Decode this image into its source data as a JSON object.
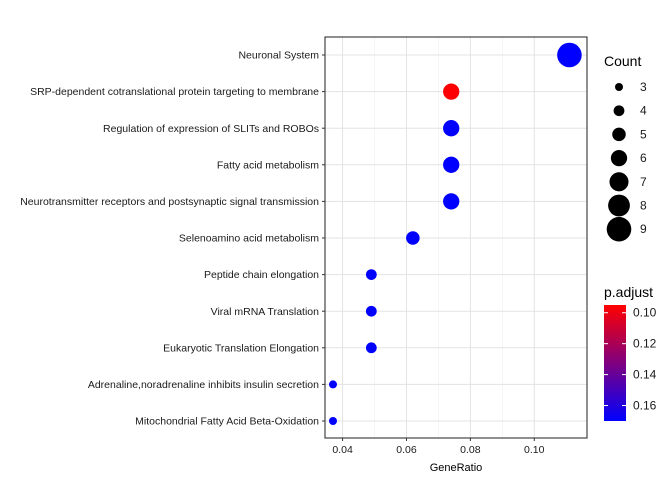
{
  "chart_data": {
    "type": "scatter",
    "xlabel": "GeneRatio",
    "ylabel": "",
    "xlim": [
      0.0345,
      0.1165
    ],
    "x_ticks": [
      0.04,
      0.06,
      0.08,
      0.1
    ],
    "x_tick_labels": [
      "0.04",
      "0.06",
      "0.08",
      "0.10"
    ],
    "grid": true,
    "categories": [
      "Neuronal System",
      "SRP-dependent cotranslational protein targeting to membrane",
      "Regulation of expression of SLITs and ROBOs",
      "Fatty acid metabolism",
      "Neurotransmitter receptors and postsynaptic signal transmission",
      "Selenoamino acid metabolism",
      "Peptide chain elongation",
      "Viral mRNA Translation",
      "Eukaryotic Translation Elongation",
      "Adrenaline,noradrenaline inhibits insulin secretion",
      "Mitochondrial Fatty Acid Beta-Oxidation"
    ],
    "points": [
      {
        "term": "Neuronal System",
        "gene_ratio": 0.111,
        "count": 9,
        "p_adjust": 0.17
      },
      {
        "term": "SRP-dependent cotranslational protein targeting to membrane",
        "gene_ratio": 0.074,
        "count": 6,
        "p_adjust": 0.096
      },
      {
        "term": "Regulation of expression of SLITs and ROBOs",
        "gene_ratio": 0.074,
        "count": 6,
        "p_adjust": 0.17
      },
      {
        "term": "Fatty acid metabolism",
        "gene_ratio": 0.074,
        "count": 6,
        "p_adjust": 0.17
      },
      {
        "term": "Neurotransmitter receptors and postsynaptic signal transmission",
        "gene_ratio": 0.074,
        "count": 6,
        "p_adjust": 0.17
      },
      {
        "term": "Selenoamino acid metabolism",
        "gene_ratio": 0.062,
        "count": 5,
        "p_adjust": 0.17
      },
      {
        "term": "Peptide chain elongation",
        "gene_ratio": 0.049,
        "count": 4,
        "p_adjust": 0.17
      },
      {
        "term": "Viral mRNA Translation",
        "gene_ratio": 0.049,
        "count": 4,
        "p_adjust": 0.17
      },
      {
        "term": "Eukaryotic Translation Elongation",
        "gene_ratio": 0.049,
        "count": 4,
        "p_adjust": 0.17
      },
      {
        "term": "Adrenaline,noradrenaline inhibits insulin secretion",
        "gene_ratio": 0.037,
        "count": 3,
        "p_adjust": 0.17
      },
      {
        "term": "Mitochondrial Fatty Acid Beta-Oxidation",
        "gene_ratio": 0.037,
        "count": 3,
        "p_adjust": 0.17
      }
    ],
    "size_legend": {
      "title": "Count",
      "values": [
        3,
        4,
        5,
        6,
        7,
        8,
        9
      ],
      "labels": [
        "3",
        "4",
        "5",
        "6",
        "7",
        "8",
        "9"
      ]
    },
    "color_legend": {
      "title": "p.adjust",
      "range": [
        0.095,
        0.17
      ],
      "ticks": [
        0.1,
        0.12,
        0.14,
        0.16
      ],
      "tick_labels": [
        "0.10",
        "0.12",
        "0.14",
        "0.16"
      ],
      "low_color": "#ff0000",
      "high_color": "#0000ff"
    },
    "legend_placement": "right"
  }
}
